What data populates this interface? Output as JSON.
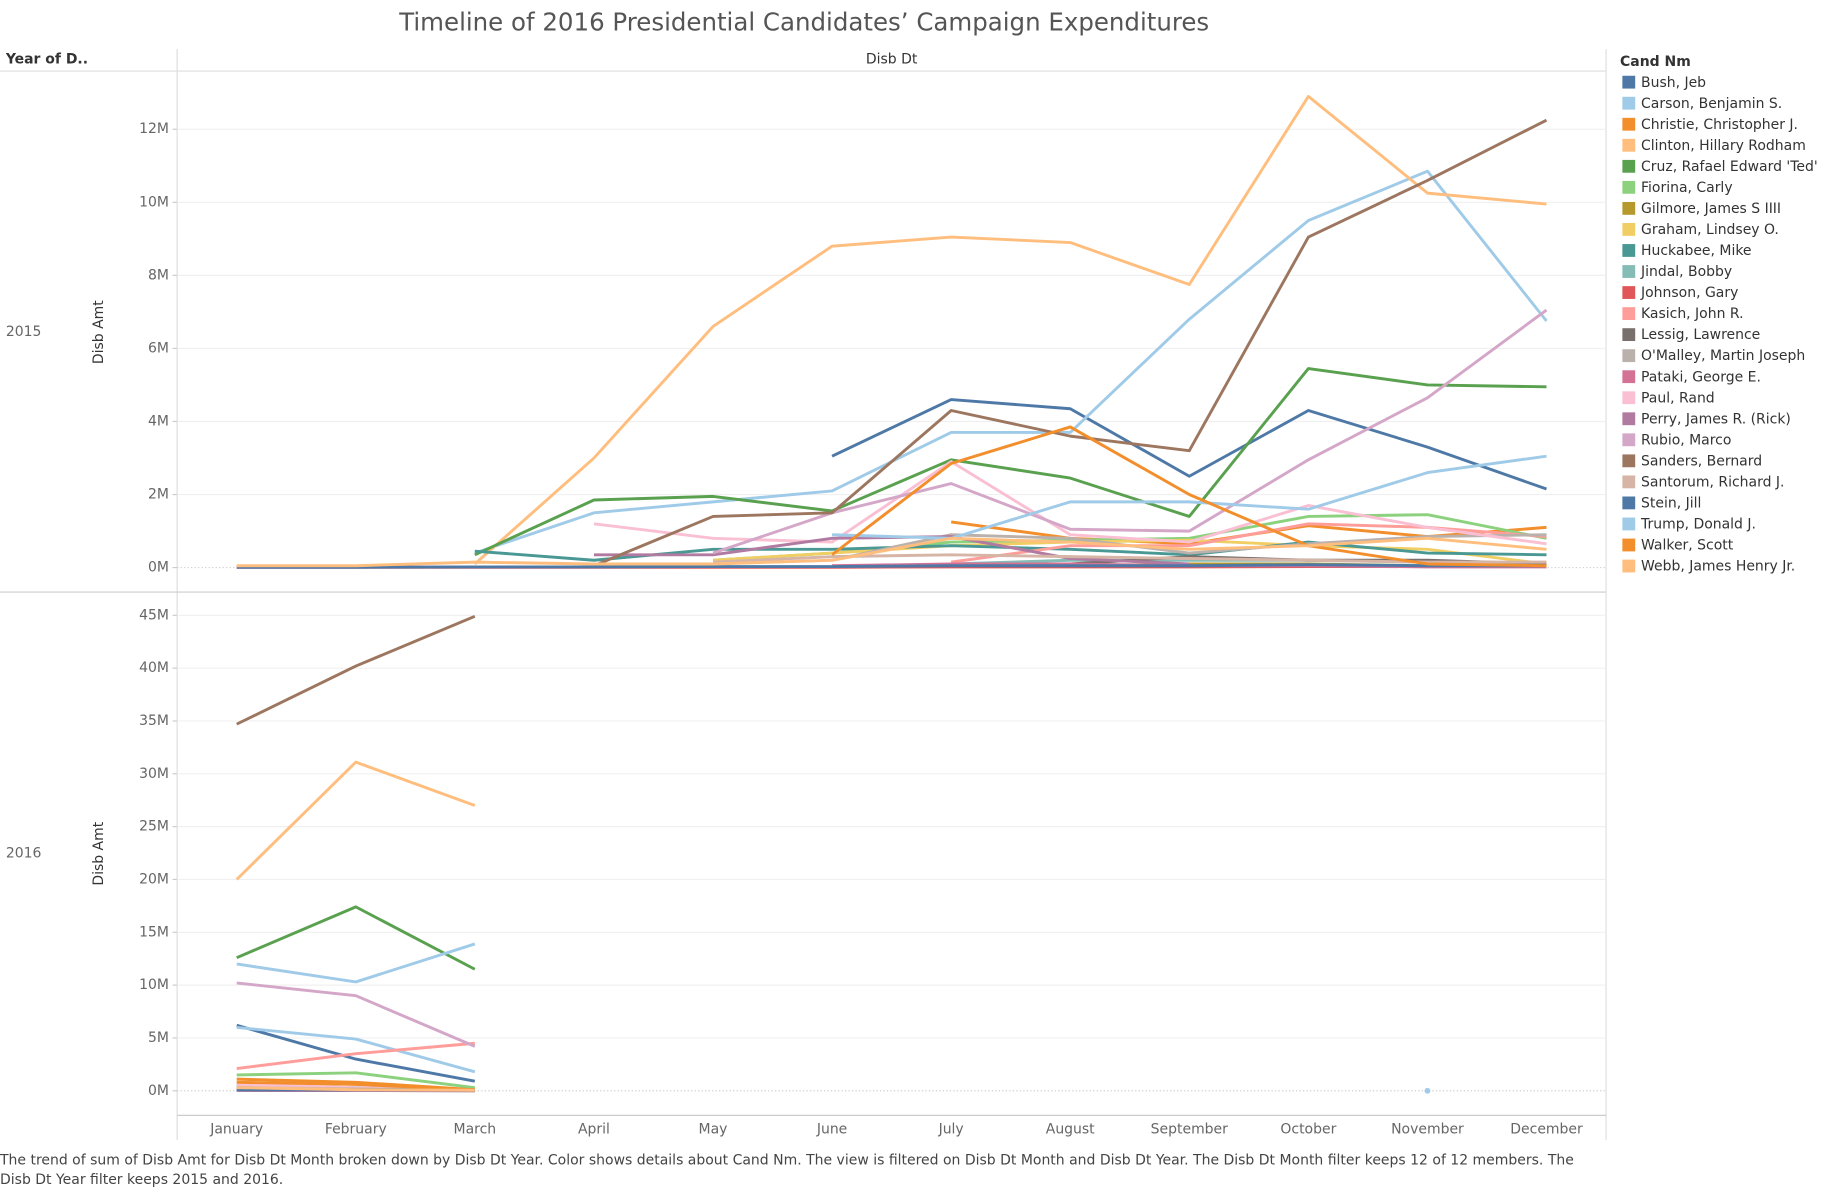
{
  "chart_data": {
    "type": "line",
    "title": "Timeline of 2016 Presidential Candidates’ Campaign Expenditures",
    "row_header": "Year of D..",
    "column_header": "Disb Dt",
    "y_label": "Disb Amt",
    "legend_title": "Cand Nm",
    "categories": [
      "January",
      "February",
      "March",
      "April",
      "May",
      "June",
      "July",
      "August",
      "September",
      "October",
      "November",
      "December"
    ],
    "series": [
      {
        "name": "Bush, Jeb",
        "color": "#4e79a7"
      },
      {
        "name": "Carson, Benjamin S.",
        "color": "#a0cbe8"
      },
      {
        "name": "Christie, Christopher J.",
        "color": "#f28e2b"
      },
      {
        "name": "Clinton, Hillary Rodham",
        "color": "#ffbe7d"
      },
      {
        "name": "Cruz, Rafael Edward 'Ted'",
        "color": "#59a14f"
      },
      {
        "name": "Fiorina, Carly",
        "color": "#8cd17d"
      },
      {
        "name": "Gilmore, James S IIII",
        "color": "#b6992d"
      },
      {
        "name": "Graham, Lindsey O.",
        "color": "#f1ce63"
      },
      {
        "name": "Huckabee, Mike",
        "color": "#499894"
      },
      {
        "name": "Jindal, Bobby",
        "color": "#86bcb6"
      },
      {
        "name": "Johnson, Gary",
        "color": "#e15759"
      },
      {
        "name": "Kasich, John R.",
        "color": "#ff9d9a"
      },
      {
        "name": "Lessig, Lawrence",
        "color": "#79706e"
      },
      {
        "name": "O'Malley, Martin Joseph",
        "color": "#bab0ac"
      },
      {
        "name": "Pataki, George E.",
        "color": "#d37295"
      },
      {
        "name": "Paul, Rand",
        "color": "#fabfd2"
      },
      {
        "name": "Perry, James R. (Rick)",
        "color": "#b07aa1"
      },
      {
        "name": "Rubio, Marco",
        "color": "#d4a6c8"
      },
      {
        "name": "Sanders, Bernard",
        "color": "#9d7660"
      },
      {
        "name": "Santorum, Richard J.",
        "color": "#d7b5a6"
      },
      {
        "name": "Stein, Jill",
        "color": "#4e79a7"
      },
      {
        "name": "Trump, Donald J.",
        "color": "#a0cbe8"
      },
      {
        "name": "Walker, Scott",
        "color": "#f28e2b"
      },
      {
        "name": "Webb, James Henry Jr.",
        "color": "#ffbe7d"
      }
    ],
    "panels": [
      {
        "label": "2015",
        "ylim": [
          -0.67,
          13.56
        ],
        "yticks": [
          {
            "value": 0,
            "label": "0M"
          },
          {
            "value": 2,
            "label": "2M"
          },
          {
            "value": 4,
            "label": "4M"
          },
          {
            "value": 6,
            "label": "6M"
          },
          {
            "value": 8,
            "label": "8M"
          },
          {
            "value": 10,
            "label": "10M"
          },
          {
            "value": 12,
            "label": "12M"
          }
        ],
        "values": [
          [
            null,
            null,
            null,
            null,
            null,
            3.05,
            4.6,
            4.35,
            2.5,
            4.3,
            3.3,
            2.15
          ],
          [
            null,
            null,
            0.4,
            1.5,
            1.8,
            2.1,
            3.7,
            3.7,
            6.8,
            9.5,
            10.85,
            6.75
          ],
          [
            null,
            null,
            null,
            null,
            null,
            null,
            1.25,
            0.8,
            0.65,
            1.15,
            0.85,
            1.1
          ],
          [
            null,
            null,
            0.1,
            3.0,
            6.6,
            8.8,
            9.05,
            8.9,
            7.75,
            12.9,
            10.25,
            9.95
          ],
          [
            null,
            null,
            0.35,
            1.85,
            1.95,
            1.55,
            2.95,
            2.45,
            1.4,
            5.45,
            5.0,
            4.95
          ],
          [
            null,
            null,
            null,
            null,
            0.2,
            0.4,
            0.7,
            0.75,
            0.8,
            1.4,
            1.45,
            0.8
          ],
          [
            null,
            null,
            null,
            null,
            null,
            null,
            null,
            0.05,
            0.1,
            0.1,
            0.05,
            0.05
          ],
          [
            null,
            null,
            null,
            null,
            0.2,
            0.4,
            0.6,
            0.7,
            0.75,
            0.6,
            0.5,
            0.1
          ],
          [
            null,
            null,
            0.45,
            0.2,
            0.5,
            0.5,
            0.6,
            0.5,
            0.35,
            0.7,
            0.4,
            0.35
          ],
          [
            null,
            null,
            null,
            null,
            null,
            null,
            0.1,
            0.2,
            0.2,
            0.2,
            0.15,
            0.1
          ],
          [
            0.01,
            0.01,
            0.01,
            0.01,
            0.01,
            0.01,
            0.02,
            0.02,
            0.02,
            0.03,
            0.03,
            0.03
          ],
          [
            null,
            null,
            null,
            null,
            null,
            null,
            0.15,
            0.6,
            0.6,
            1.2,
            1.1,
            0.85
          ],
          [
            null,
            null,
            null,
            null,
            null,
            null,
            null,
            0.1,
            0.3,
            0.2,
            0.2,
            0.1
          ],
          [
            null,
            null,
            null,
            null,
            null,
            0.2,
            0.9,
            0.8,
            0.4,
            0.65,
            0.85,
            0.9
          ],
          [
            null,
            null,
            null,
            null,
            null,
            0.05,
            0.1,
            0.1,
            0.05,
            0.05,
            0.02,
            0.02
          ],
          [
            null,
            null,
            null,
            1.2,
            0.8,
            0.7,
            2.9,
            0.9,
            0.7,
            1.7,
            1.1,
            0.65
          ],
          [
            null,
            null,
            null,
            0.35,
            0.35,
            0.8,
            0.85,
            0.25,
            0.1,
            null,
            null,
            null
          ],
          [
            null,
            null,
            null,
            null,
            0.4,
            1.5,
            2.3,
            1.05,
            1.0,
            2.95,
            4.65,
            7.05
          ],
          [
            null,
            null,
            null,
            0.05,
            1.4,
            1.5,
            4.3,
            3.6,
            3.2,
            9.05,
            10.6,
            12.25
          ],
          [
            null,
            null,
            null,
            null,
            0.15,
            0.3,
            0.35,
            0.3,
            0.25,
            0.2,
            0.15,
            0.15
          ],
          [
            0.01,
            0.01,
            0.02,
            0.02,
            0.03,
            0.03,
            0.05,
            0.05,
            0.05,
            0.08,
            0.05,
            0.05
          ],
          [
            null,
            null,
            null,
            null,
            null,
            0.9,
            0.8,
            1.8,
            1.8,
            1.6,
            2.6,
            3.05
          ],
          [
            null,
            null,
            null,
            null,
            null,
            0.35,
            2.85,
            3.85,
            2.0,
            0.6,
            0.1,
            0.05
          ],
          [
            0.05,
            0.05,
            0.15,
            0.1,
            0.1,
            0.2,
            0.8,
            0.7,
            0.5,
            0.6,
            0.8,
            0.5
          ]
        ]
      },
      {
        "label": "2016",
        "ylim": [
          -2.33,
          47.2
        ],
        "yticks": [
          {
            "value": 0,
            "label": "0M"
          },
          {
            "value": 5,
            "label": "5M"
          },
          {
            "value": 10,
            "label": "10M"
          },
          {
            "value": 15,
            "label": "15M"
          },
          {
            "value": 20,
            "label": "20M"
          },
          {
            "value": 25,
            "label": "25M"
          },
          {
            "value": 30,
            "label": "30M"
          },
          {
            "value": 35,
            "label": "35M"
          },
          {
            "value": 40,
            "label": "40M"
          },
          {
            "value": 45,
            "label": "45M"
          }
        ],
        "values": [
          [
            6.2,
            3.0,
            0.9,
            null,
            null,
            null,
            null,
            null,
            null,
            null,
            null,
            null
          ],
          [
            6.0,
            4.9,
            1.8,
            null,
            null,
            null,
            null,
            null,
            null,
            null,
            null,
            null
          ],
          [
            1.1,
            0.8,
            0.1,
            null,
            null,
            null,
            null,
            null,
            null,
            null,
            null,
            null
          ],
          [
            20.0,
            31.1,
            27.0,
            null,
            null,
            null,
            null,
            null,
            null,
            null,
            null,
            null
          ],
          [
            12.6,
            17.4,
            11.5,
            null,
            null,
            null,
            null,
            null,
            null,
            null,
            null,
            null
          ],
          [
            1.5,
            1.7,
            0.3,
            null,
            null,
            null,
            null,
            null,
            null,
            null,
            null,
            null
          ],
          [
            0.1,
            0.05,
            0.02,
            null,
            null,
            null,
            null,
            null,
            null,
            null,
            null,
            null
          ],
          [
            0.2,
            0.05,
            0.01,
            null,
            null,
            null,
            null,
            null,
            null,
            null,
            null,
            null
          ],
          [
            0.5,
            0.3,
            0.05,
            null,
            null,
            null,
            null,
            null,
            null,
            null,
            null,
            null
          ],
          [
            0.05,
            0.02,
            0.01,
            null,
            null,
            null,
            null,
            null,
            null,
            null,
            null,
            null
          ],
          [
            0.05,
            0.05,
            0.05,
            null,
            null,
            null,
            null,
            null,
            null,
            null,
            null,
            null
          ],
          [
            2.1,
            3.5,
            4.5,
            null,
            null,
            null,
            null,
            null,
            null,
            null,
            null,
            null
          ],
          [
            0.05,
            0.02,
            0.01,
            null,
            null,
            null,
            null,
            null,
            null,
            null,
            null,
            null
          ],
          [
            0.4,
            0.2,
            0.05,
            null,
            null,
            null,
            null,
            null,
            null,
            null,
            null,
            null
          ],
          [
            0.05,
            0.02,
            0.01,
            null,
            null,
            null,
            null,
            null,
            null,
            null,
            null,
            null
          ],
          [
            0.6,
            0.3,
            0.05,
            null,
            null,
            null,
            null,
            null,
            null,
            null,
            null,
            null
          ],
          [
            0.05,
            0.02,
            0.01,
            null,
            null,
            null,
            null,
            null,
            null,
            null,
            null,
            null
          ],
          [
            10.2,
            9.0,
            4.2,
            null,
            null,
            null,
            null,
            null,
            null,
            null,
            null,
            null
          ],
          [
            34.7,
            40.2,
            44.9,
            null,
            null,
            null,
            null,
            null,
            null,
            null,
            null,
            null
          ],
          [
            0.3,
            0.2,
            0.05,
            null,
            null,
            null,
            null,
            null,
            null,
            null,
            null,
            null
          ],
          [
            0.1,
            0.1,
            0.1,
            null,
            null,
            null,
            null,
            null,
            null,
            null,
            null,
            null
          ],
          [
            12.0,
            10.3,
            13.9,
            null,
            null,
            null,
            null,
            null,
            null,
            null,
            0,
            null
          ],
          [
            0.8,
            0.6,
            0.1,
            null,
            null,
            null,
            null,
            null,
            null,
            null,
            null,
            null
          ],
          [
            0.3,
            0.1,
            0.05,
            null,
            null,
            null,
            null,
            null,
            null,
            null,
            null,
            null
          ]
        ]
      }
    ],
    "caption": "The trend of sum of Disb Amt for Disb Dt Month broken down by Disb Dt Year.  Color shows details about Cand Nm. The view is filtered on Disb Dt Month and Disb Dt Year. The Disb Dt Month filter keeps 12 of 12 members. The Disb Dt Year filter keeps 2015 and 2016."
  }
}
